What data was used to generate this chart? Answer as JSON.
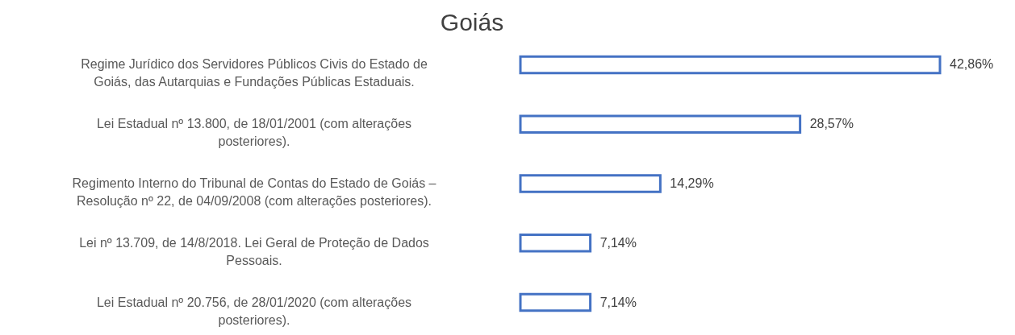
{
  "chart_data": {
    "type": "bar",
    "orientation": "horizontal",
    "title": "Goiás",
    "categories": [
      "Regime Jurídico dos Servidores Públicos Civis do Estado de Goiás, das Autarquias e Fundações Públicas Estaduais.",
      "Lei Estadual nº 13.800, de 18/01/2001 (com alterações posteriores).",
      "Regimento Interno do Tribunal de Contas do Estado de Goiás – Resolução nº 22, de 04/09/2008 (com alterações posteriores).",
      "Lei nº 13.709, de 14/8/2018. Lei Geral de Proteção de Dados Pessoais.",
      "Lei Estadual nº 20.756, de 28/01/2020 (com alterações posteriores)."
    ],
    "values": [
      42.86,
      28.57,
      14.29,
      7.14,
      7.14
    ],
    "value_labels": [
      "42,86%",
      "28,57%",
      "14,29%",
      "7,14%",
      "7,14%"
    ],
    "color": "#4472c4"
  }
}
